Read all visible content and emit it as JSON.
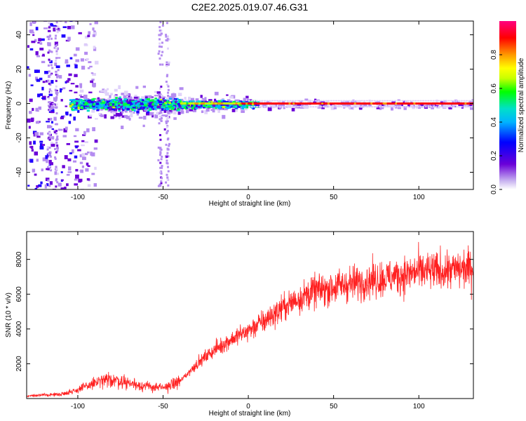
{
  "figure": {
    "title": "C2E2.2025.019.07.46.G31"
  },
  "chart_data": [
    {
      "type": "heatmap",
      "xlabel": "Height of straight line (km)",
      "ylabel": "Frequency (Hz)",
      "xlim": [
        -130,
        132
      ],
      "ylim": [
        -50,
        48
      ],
      "xticks": [
        -100,
        -50,
        0,
        50,
        100
      ],
      "yticks": [
        -40,
        -20,
        0,
        20,
        40
      ],
      "colorbar": {
        "label": "Normalized spectral amplitude",
        "range": [
          0.0,
          1.0
        ],
        "ticks": [
          "0.0",
          "0.2",
          "0.4",
          "0.6",
          "0.8"
        ],
        "colormap": [
          "#ffffff",
          "#c9b5f0",
          "#6a00d8",
          "#0000ff",
          "#00b4ff",
          "#00e0c8",
          "#00ff00",
          "#c8ff00",
          "#ffff00",
          "#ff9900",
          "#ff0000",
          "#ff0080"
        ]
      },
      "description_data": {
        "carrier_frequency_hz": 0,
        "carrier_amplitude_above_0km": 0.95,
        "strong_scatter_region_km": [
          -130,
          -90
        ],
        "scatter_band_hz_at_minus50km": [
          -10,
          8
        ],
        "cyan_green_region_km": [
          -100,
          0
        ]
      }
    },
    {
      "type": "line",
      "xlabel": "Height of straight line (km)",
      "ylabel": "SNR (10 * v/v)",
      "xlim": [
        -130,
        132
      ],
      "ylim": [
        0,
        9600
      ],
      "xticks": [
        -100,
        -50,
        0,
        50,
        100
      ],
      "yticks": [
        2000,
        4000,
        6000,
        8000
      ],
      "color": "#ff2020",
      "series": [
        {
          "x": [
            -130,
            -110,
            -100,
            -90,
            -80,
            -70,
            -60,
            -50,
            -40,
            -30,
            -20,
            -10,
            0,
            10,
            20,
            30,
            40,
            50,
            60,
            70,
            80,
            90,
            100,
            110,
            120,
            132
          ],
          "values": [
            150,
            250,
            500,
            900,
            1100,
            900,
            700,
            600,
            1000,
            2000,
            2800,
            3400,
            3900,
            4500,
            5200,
            5800,
            6200,
            6400,
            6600,
            6800,
            6900,
            7100,
            7300,
            7300,
            7400,
            7500
          ]
        }
      ]
    }
  ]
}
